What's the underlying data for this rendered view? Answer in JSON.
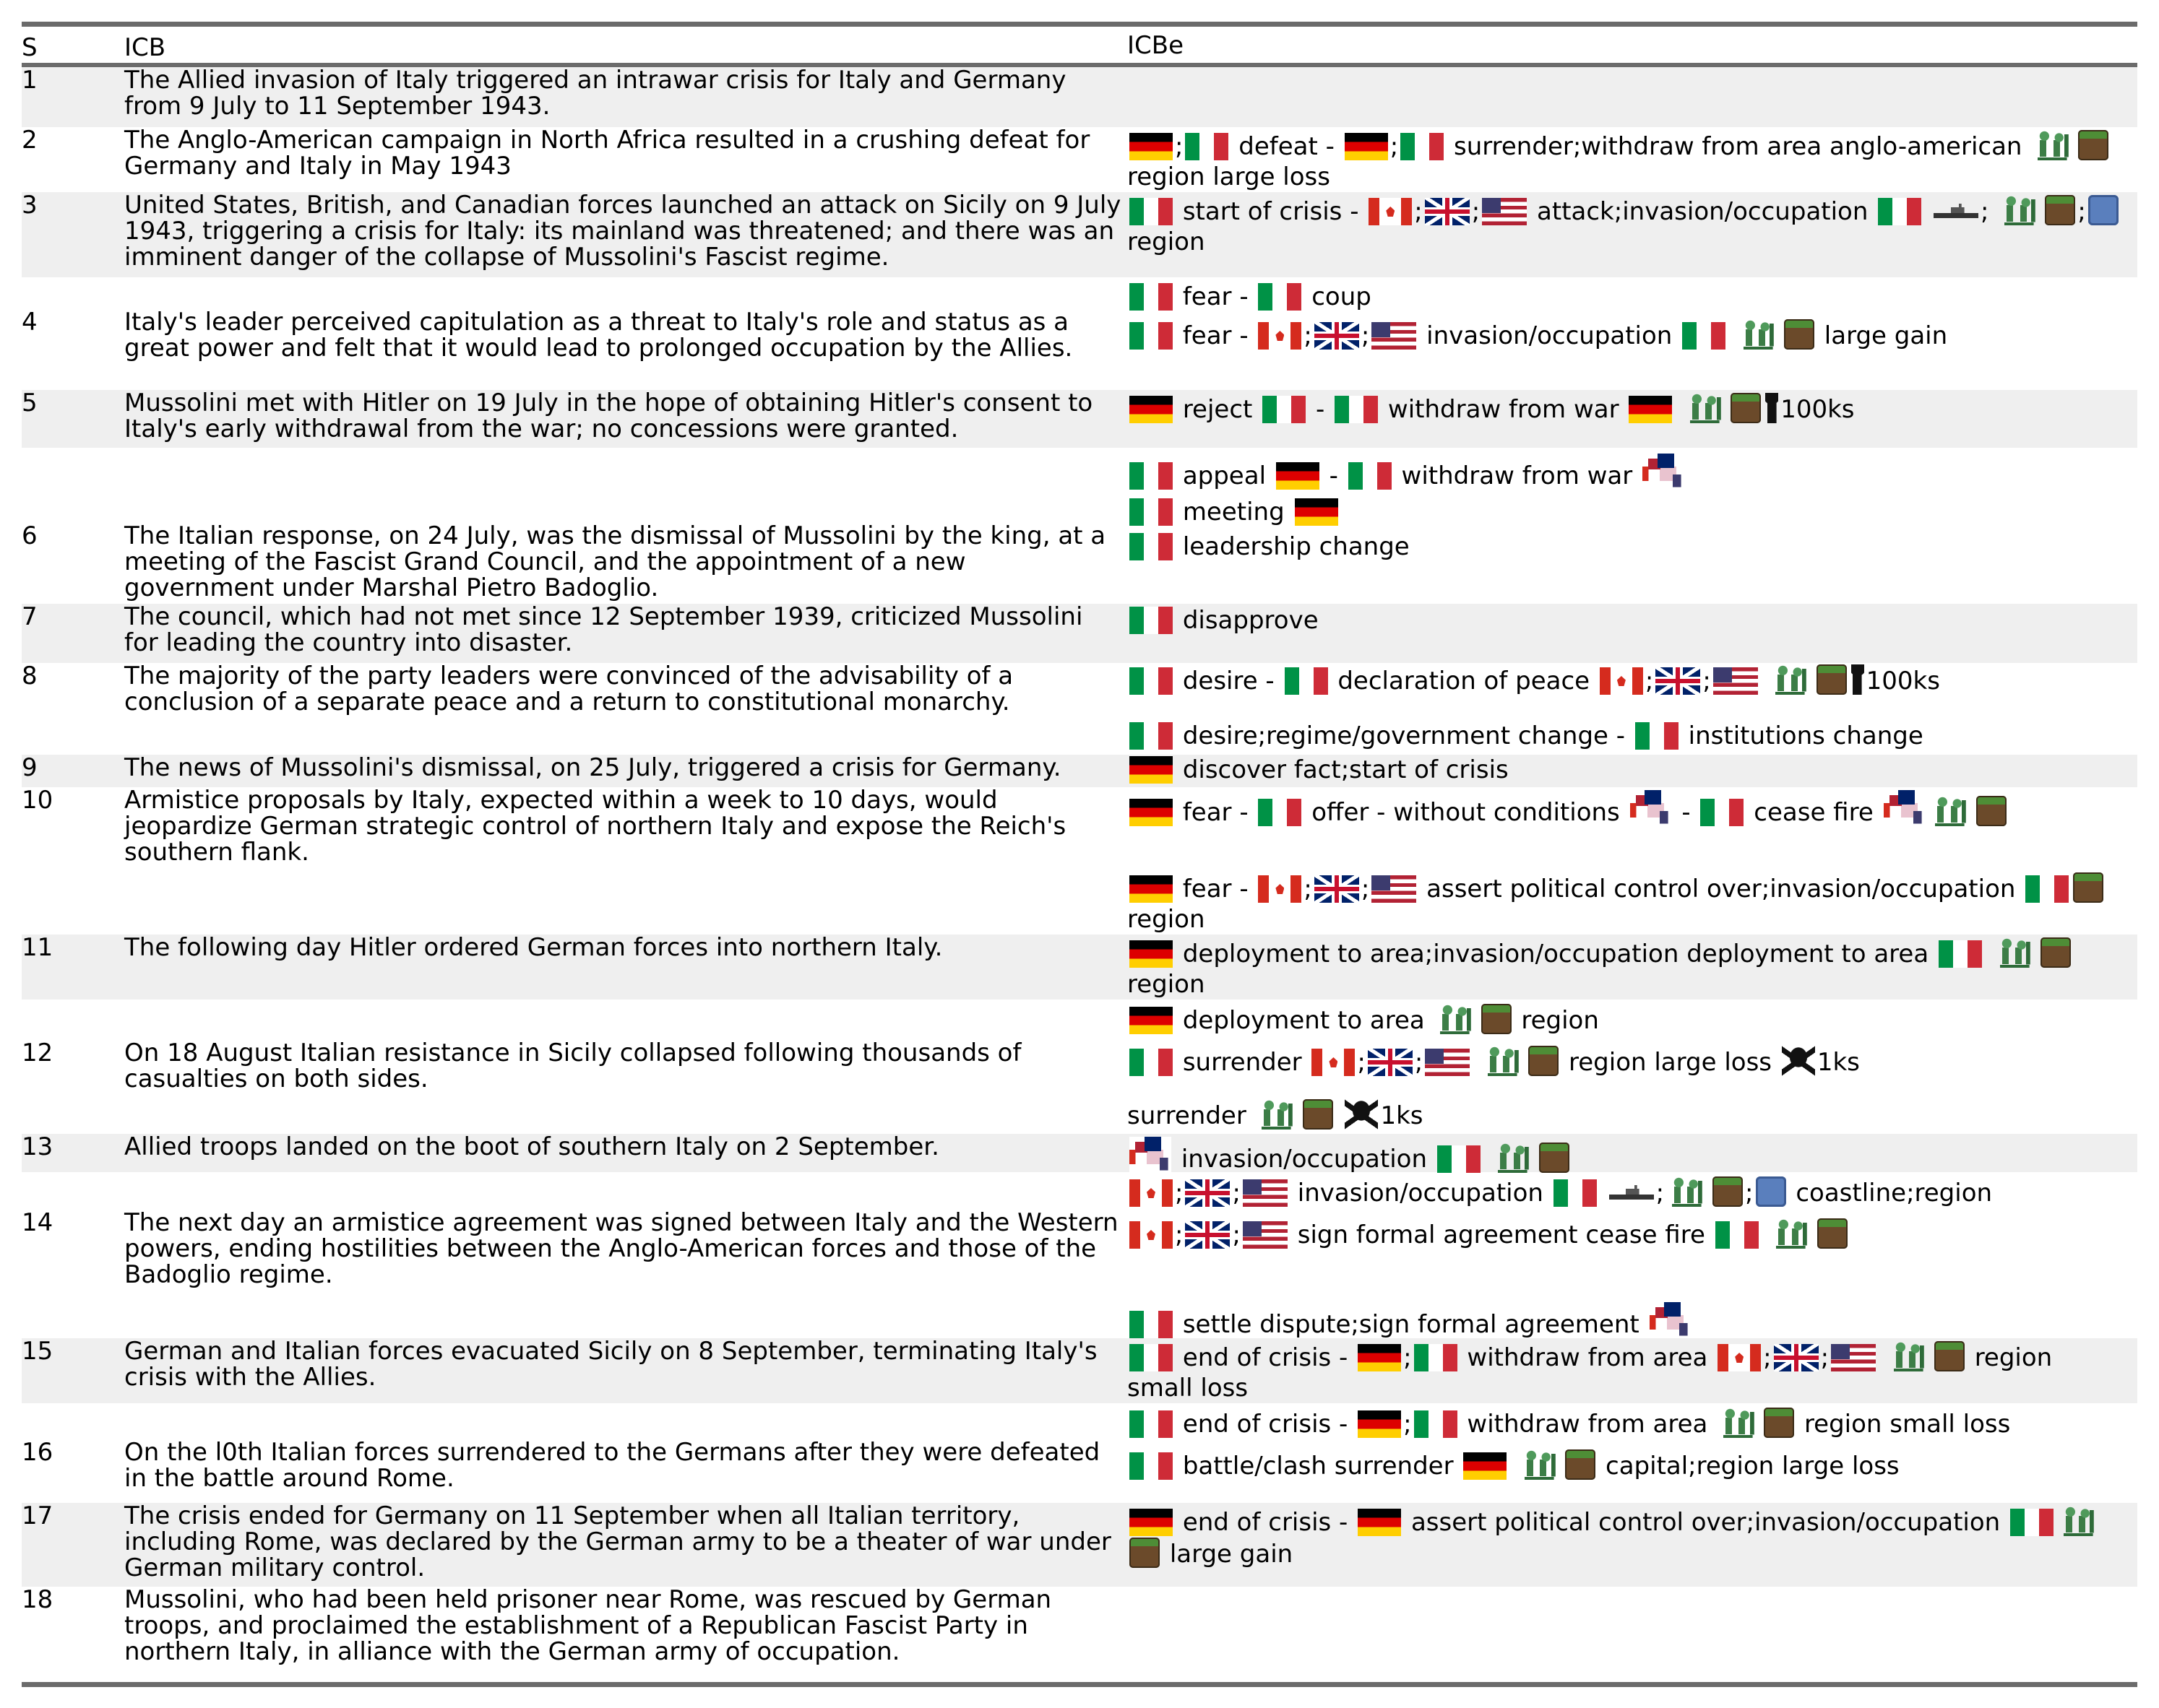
{
  "header": {
    "s": "S",
    "icb": "ICB",
    "icbe": "ICBe"
  },
  "rows": [
    {
      "s": "1",
      "icb": "The Allied invasion of Italy triggered an intrawar crisis for Italy and Germany from 9 July to 11 September 1943."
    },
    {
      "s": "2",
      "icb": "The Anglo-American campaign in North Africa resulted in a crushing defeat for Germany and Italy in May 1943"
    },
    {
      "s": "3",
      "icb": "United States, British, and Canadian forces launched an attack on Sicily on 9 July 1943, triggering a crisis for Italy: its mainland was threatened; and there was an imminent danger of the collapse of Mussolini's Fascist regime."
    },
    {
      "s": "4",
      "icb": "Italy's leader perceived capitulation as a threat to Italy's role and status as a great power and felt that it would lead to prolonged occupation by the Allies."
    },
    {
      "s": "5",
      "icb": "Mussolini met with Hitler on 19 July in the hope of obtaining Hitler's consent to Italy's early withdrawal from the war; no concessions were granted."
    },
    {
      "s": "6",
      "icb": "The Italian response, on 24 July, was the dismissal of Mussolini by the king, at a meeting of the Fascist Grand Council, and the appointment of a new government under Marshal Pietro Badoglio."
    },
    {
      "s": "7",
      "icb": "The council, which had not met since 12 September 1939, criticized Mussolini for leading the country into disaster."
    },
    {
      "s": "8",
      "icb": "The majority of the party leaders were convinced of the advisability of a conclusion of a separate peace and a return to constitutional monarchy."
    },
    {
      "s": "9",
      "icb": "The news of Mussolini's dismissal, on 25 July, triggered a crisis for Germany."
    },
    {
      "s": "10",
      "icb": "Armistice proposals by Italy, expected within a week to 10 days, would jeopardize German strategic control of northern Italy and expose the Reich's southern flank."
    },
    {
      "s": "11",
      "icb": "The following day Hitler ordered German forces into northern Italy."
    },
    {
      "s": "12",
      "icb": "On 18 August Italian resistance in Sicily collapsed following thousands of casualties on both sides."
    },
    {
      "s": "13",
      "icb": "Allied troops landed on the boot of southern Italy on 2 September."
    },
    {
      "s": "14",
      "icb": "The next day an armistice agreement was signed between Italy and the Western powers, ending hostilities between the Anglo-American forces and those of the Badoglio regime."
    },
    {
      "s": "15",
      "icb": "German and Italian forces evacuated Sicily on 8 September, terminating Italy's crisis with the Allies."
    },
    {
      "s": "16",
      "icb": "On the l0th Italian forces surrendered to the Germans after they were defeated in the battle around Rome."
    },
    {
      "s": "17",
      "icb": "The crisis ended for Germany on 11 September when all Italian territory, including Rome, was declared by the German army to be a theater of war under German military control."
    },
    {
      "s": "18",
      "icb": "Mussolini, who had been held prisoner near Rome, was rescued by German troops, and proclaimed the establishment of a Republican Fascist Party in northern Italy, in alliance with the German army of occupation."
    }
  ],
  "icbe": {
    "r2": {
      "a": ";",
      "b": "defeat -",
      "c": ";",
      "d": "surrender;withdraw from area anglo-american",
      "e": "region large loss"
    },
    "r3": {
      "a": "start of crisis -",
      "b": ";",
      "c": ";",
      "d": "attack;invasion/occupation",
      "e": ";",
      "f": ";",
      "g": "region"
    },
    "r4": {
      "a": "fear -",
      "b": "coup",
      "c": "fear -",
      "d": ";",
      "e": ";",
      "f": "invasion/occupation",
      "g": "large gain"
    },
    "r5": {
      "a": "reject",
      "b": "-",
      "c": "withdraw from war",
      "d": "100ks"
    },
    "r6": {
      "a": "appeal",
      "b": "-",
      "c": "withdraw from war",
      "d": "meeting",
      "e": "leadership change"
    },
    "r7": {
      "a": "disapprove"
    },
    "r8": {
      "a": "desire -",
      "b": "declaration of peace",
      "c": ";",
      "d": ";",
      "e": "100ks",
      "f": "desire;regime/government change -",
      "g": "institutions change"
    },
    "r9": {
      "a": "discover fact;start of crisis"
    },
    "r10": {
      "a": "fear -",
      "b": "offer - without conditions",
      "c": "-",
      "d": "cease fire",
      "e": "fear -",
      "f": ";",
      "g": ";",
      "h": "assert political control over;invasion/occupation",
      "i": "region"
    },
    "r11": {
      "a": "deployment to area;invasion/occupation deployment to area",
      "b": "region"
    },
    "r12": {
      "a": "deployment to area",
      "b": "region",
      "c": "surrender",
      "d": ";",
      "e": ";",
      "f": "region large loss",
      "g": "1ks",
      "h": "surrender",
      "i": "1ks"
    },
    "r13": {
      "a": "invasion/occupation"
    },
    "r14": {
      "a": ";",
      "b": ";",
      "c": "invasion/occupation",
      "d": ";",
      "e": ";",
      "f": "coastline;region",
      "g": ";",
      "h": ";",
      "i": "sign formal agreement cease fire",
      "j": "settle dispute;sign formal agreement"
    },
    "r15": {
      "a": "end of crisis -",
      "b": ";",
      "c": "withdraw from area",
      "d": ";",
      "e": ";",
      "f": "region",
      "g": "small loss"
    },
    "r16": {
      "a": "end of crisis -",
      "b": ";",
      "c": "withdraw from area",
      "d": "region small loss",
      "e": "battle/clash surrender",
      "f": "capital;region large loss"
    },
    "r17": {
      "a": "end of crisis -",
      "b": "assert political control over;invasion/occupation",
      "c": "large gain"
    }
  },
  "icons": {
    "flag_germany": "germany-flag-icon",
    "flag_italy": "italy-flag-icon",
    "flag_canada": "canada-flag-icon",
    "flag_uk": "uk-flag-icon",
    "flag_usa": "usa-flag-icon",
    "flag_allies": "allies-flag-icon",
    "soldiers": "soldiers-icon",
    "land": "land-block-icon",
    "sea": "sea-block-icon",
    "ship": "warship-icon",
    "person": "person-icon",
    "skull": "skull-crossbones-icon"
  },
  "colors": {
    "rule": "#6b6b6b",
    "shade": "#efefef"
  }
}
